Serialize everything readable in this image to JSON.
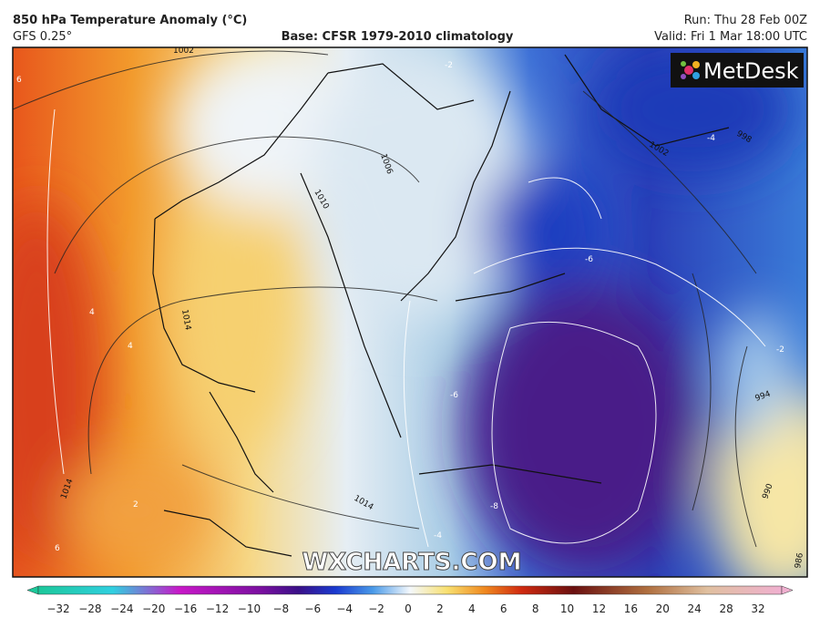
{
  "header": {
    "title": "850 hPa Temperature Anomaly (°C)",
    "model": "GFS 0.25°",
    "base": "Base: CFSR 1979-2010 climatology",
    "run": "Run: Thu 28 Feb 00Z",
    "valid": "Valid: Fri 1 Mar 18:00 UTC"
  },
  "logo": "MetDesk",
  "watermark": "WXCHARTS.COM",
  "map": {
    "isobar_labels": [
      "1002",
      "1006",
      "1010",
      "1014",
      "1014",
      "1002",
      "998",
      "994",
      "990",
      "986",
      "1014"
    ],
    "isotherm_labels": [
      "-6",
      "-8",
      "-6",
      "-4",
      "-2",
      "-4",
      "-2",
      "2",
      "4",
      "4",
      "6",
      "6"
    ]
  },
  "colorbar": {
    "labels": [
      "−32",
      "−28",
      "−24",
      "−20",
      "−16",
      "−12",
      "−10",
      "−8",
      "−6",
      "−4",
      "−2",
      "0",
      "2",
      "4",
      "6",
      "8",
      "10",
      "12",
      "16",
      "20",
      "24",
      "28",
      "32"
    ]
  }
}
